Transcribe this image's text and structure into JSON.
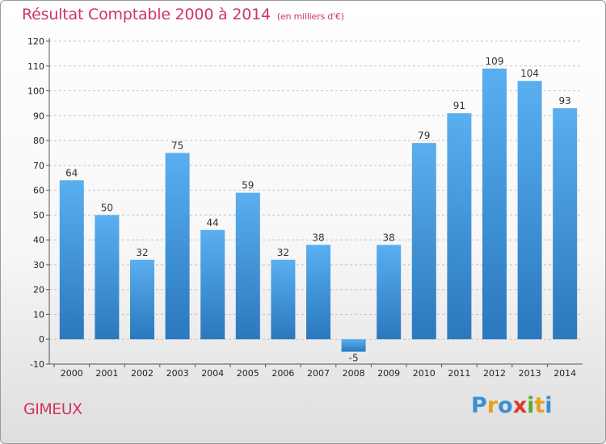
{
  "title": "Résultat Comptable 2000 à 2014",
  "subtitle": "(en milliers d'€)",
  "place": "GIMEUX",
  "logo": {
    "letters": [
      "P",
      "r",
      "o",
      "x",
      "i",
      "t",
      "i"
    ],
    "colors": [
      "#3a8fd4",
      "#e8a01b",
      "#3a8fd4",
      "#d93a2f",
      "#5aa83a",
      "#e8a01b",
      "#3a8fd4"
    ]
  },
  "colors": {
    "bar_light": "#5aaff0",
    "bar_dark": "#2a78bd",
    "title": "#d0345f"
  },
  "chart_data": {
    "type": "bar",
    "categories": [
      "2000",
      "2001",
      "2002",
      "2003",
      "2004",
      "2005",
      "2006",
      "2007",
      "2008",
      "2009",
      "2010",
      "2011",
      "2012",
      "2013",
      "2014"
    ],
    "values": [
      64,
      50,
      32,
      75,
      44,
      59,
      32,
      38,
      -5,
      38,
      79,
      91,
      109,
      104,
      93
    ],
    "ylim": [
      -10,
      120
    ],
    "yticks": [
      -10,
      0,
      10,
      20,
      30,
      40,
      50,
      60,
      70,
      80,
      90,
      100,
      110,
      120
    ],
    "grid": true,
    "data_labels": true
  }
}
